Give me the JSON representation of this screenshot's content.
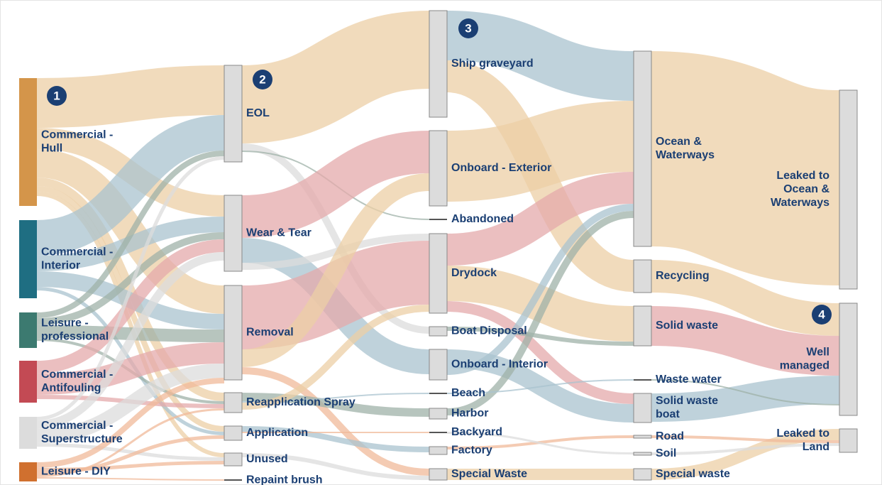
{
  "columns": [
    [
      [
        "Commercial -",
        "Hull"
      ],
      [
        "Commercial -",
        "Interior"
      ],
      [
        "Leisure -",
        "professional"
      ],
      [
        "Commercial -",
        "Antifouling"
      ],
      [
        "Commercial -",
        "Superstructure"
      ],
      [
        "Leisure - DIY"
      ]
    ],
    [
      [
        "EOL"
      ],
      [
        "Wear & Tear"
      ],
      [
        "Removal"
      ],
      [
        "Reapplication Spray"
      ],
      [
        "Application"
      ],
      [
        "Unused"
      ],
      [
        "Repaint brush"
      ]
    ],
    [
      [
        "Ship graveyard"
      ],
      [
        "Onboard - Exterior"
      ],
      [
        "Abandoned"
      ],
      [
        "Drydock"
      ],
      [
        "Boat Disposal"
      ],
      [
        "Onboard - Interior"
      ],
      [
        "Beach"
      ],
      [
        "Harbor"
      ],
      [
        "Backyard"
      ],
      [
        "Factory"
      ],
      [
        "Special Waste"
      ]
    ],
    [
      [
        "Ocean &",
        "Waterways"
      ],
      [
        "Recycling"
      ],
      [
        "Solid waste"
      ],
      [
        "Waste water"
      ],
      [
        "Solid waste",
        "boat"
      ],
      [
        "Road"
      ],
      [
        "Soil"
      ],
      [
        "Special waste"
      ]
    ],
    [
      [
        "Leaked to",
        "Ocean &",
        "Waterways"
      ],
      [
        "Well",
        "managed"
      ],
      [
        "Leaked to",
        "Land"
      ]
    ]
  ],
  "badges": [
    "1",
    "2",
    "3",
    "4"
  ]
}
